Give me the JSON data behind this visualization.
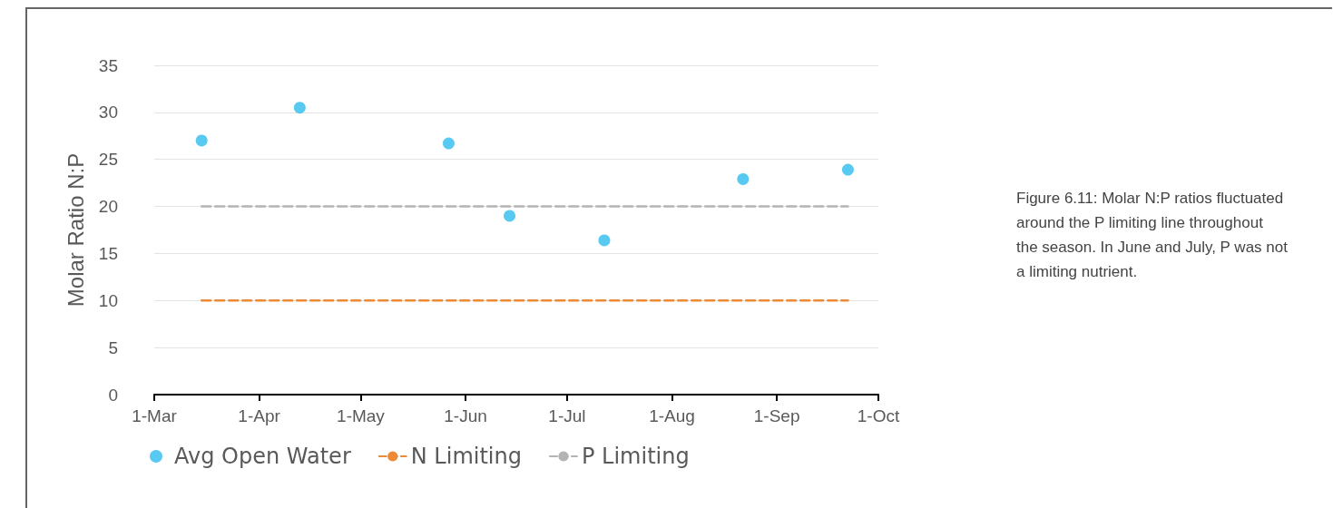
{
  "chart_data": {
    "type": "scatter",
    "ylabel": "Molar Ratio N:P",
    "x": [
      "--03-15",
      "--04-13",
      "--05-27",
      "--06-14",
      "--07-12",
      "--08-22",
      "--09-22"
    ],
    "series": [
      {
        "name": "Avg Open Water",
        "color": "#2ebdee",
        "marker": "circle",
        "values": [
          27.0,
          30.5,
          26.7,
          19.0,
          16.4,
          22.9,
          23.9
        ]
      },
      {
        "name": "N Limiting",
        "type": "line",
        "color": "#ed8a35",
        "marker": "none",
        "line_style": "dashed",
        "values": [
          10,
          10,
          10,
          10,
          10,
          10,
          10
        ]
      },
      {
        "name": "P Limiting",
        "type": "line",
        "color": "#b4b4b4",
        "marker": "none",
        "line_style": "dashed",
        "values": [
          20,
          20,
          20,
          20,
          20,
          20,
          20
        ]
      }
    ],
    "xlim": [
      "--03-01",
      "--10-01"
    ],
    "xticks": [
      {
        "value": "--03-01",
        "label": "1-Mar"
      },
      {
        "value": "--04-01",
        "label": "1-Apr"
      },
      {
        "value": "--05-01",
        "label": "1-May"
      },
      {
        "value": "--06-01",
        "label": "1-Jun"
      },
      {
        "value": "--07-01",
        "label": "1-Jul"
      },
      {
        "value": "--08-01",
        "label": "1-Aug"
      },
      {
        "value": "--09-01",
        "label": "1-Sep"
      },
      {
        "value": "--10-01",
        "label": "1-Oct"
      }
    ],
    "ylim": [
      0,
      35
    ],
    "yticks": [
      0,
      5,
      10,
      15,
      20,
      25,
      30,
      35
    ],
    "grid": "y",
    "legend": "bottom",
    "annotations": [
      "Figure 6.11: Molar N:P ratios fluctuated around the P limiting line throughout the season. In June and July, P was not a limiting nutrient."
    ]
  }
}
